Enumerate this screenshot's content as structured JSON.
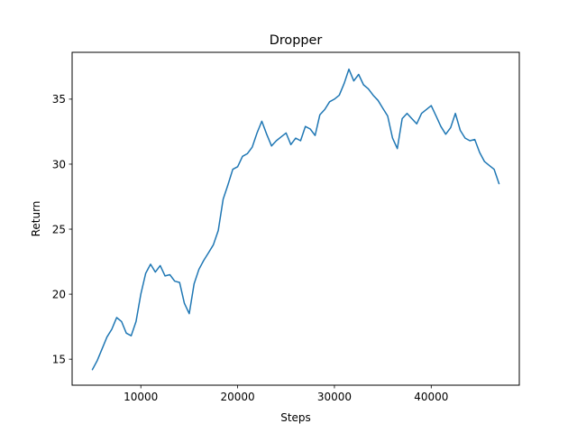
{
  "chart_data": {
    "type": "line",
    "title": "Dropper",
    "xlabel": "Steps",
    "ylabel": "Return",
    "xlim": [
      2900,
      49100
    ],
    "ylim": [
      13.0,
      38.6
    ],
    "xticks": [
      10000,
      20000,
      30000,
      40000
    ],
    "yticks": [
      15,
      20,
      25,
      30,
      35
    ],
    "grid": false,
    "legend": "none",
    "series": [
      {
        "color": "#1f77b4",
        "x": [
          5000,
          5500,
          6000,
          6500,
          7000,
          7500,
          8000,
          8500,
          9000,
          9500,
          10000,
          10500,
          11000,
          11500,
          12000,
          12500,
          13000,
          13500,
          14000,
          14500,
          15000,
          15500,
          16000,
          16500,
          17000,
          17500,
          18000,
          18500,
          19000,
          19500,
          20000,
          20500,
          21000,
          21500,
          22000,
          22500,
          23000,
          23500,
          24000,
          24500,
          25000,
          25500,
          26000,
          26500,
          27000,
          27500,
          28000,
          28500,
          29000,
          29500,
          30000,
          30500,
          31000,
          31500,
          32000,
          32500,
          33000,
          33500,
          34000,
          34500,
          35000,
          35500,
          36000,
          36500,
          37000,
          37500,
          38000,
          38500,
          39000,
          39500,
          40000,
          40500,
          41000,
          41500,
          42000,
          42500,
          43000,
          43500,
          44000,
          44500,
          45000,
          45500,
          46000,
          46500,
          47000
        ],
        "y": [
          14.2,
          14.9,
          15.8,
          16.7,
          17.3,
          18.2,
          17.9,
          17.0,
          16.8,
          17.9,
          20.0,
          21.6,
          22.3,
          21.7,
          22.2,
          21.4,
          21.5,
          21.0,
          20.9,
          19.3,
          18.5,
          20.8,
          21.9,
          22.6,
          23.2,
          23.8,
          24.9,
          27.3,
          28.4,
          29.6,
          29.8,
          30.6,
          30.8,
          31.3,
          32.4,
          33.3,
          32.3,
          31.4,
          31.8,
          32.1,
          32.4,
          31.5,
          32.0,
          31.8,
          32.9,
          32.7,
          32.2,
          33.8,
          34.2,
          34.8,
          35.0,
          35.3,
          36.2,
          37.3,
          36.4,
          36.9,
          36.1,
          35.8,
          35.3,
          34.9,
          34.3,
          33.7,
          32.0,
          31.2,
          33.5,
          33.9,
          33.5,
          33.1,
          33.9,
          34.2,
          34.5,
          33.7,
          32.9,
          32.3,
          32.8,
          33.9,
          32.6,
          32.0,
          31.8,
          31.9,
          30.9,
          30.2,
          29.9,
          29.6,
          28.5
        ]
      }
    ]
  }
}
